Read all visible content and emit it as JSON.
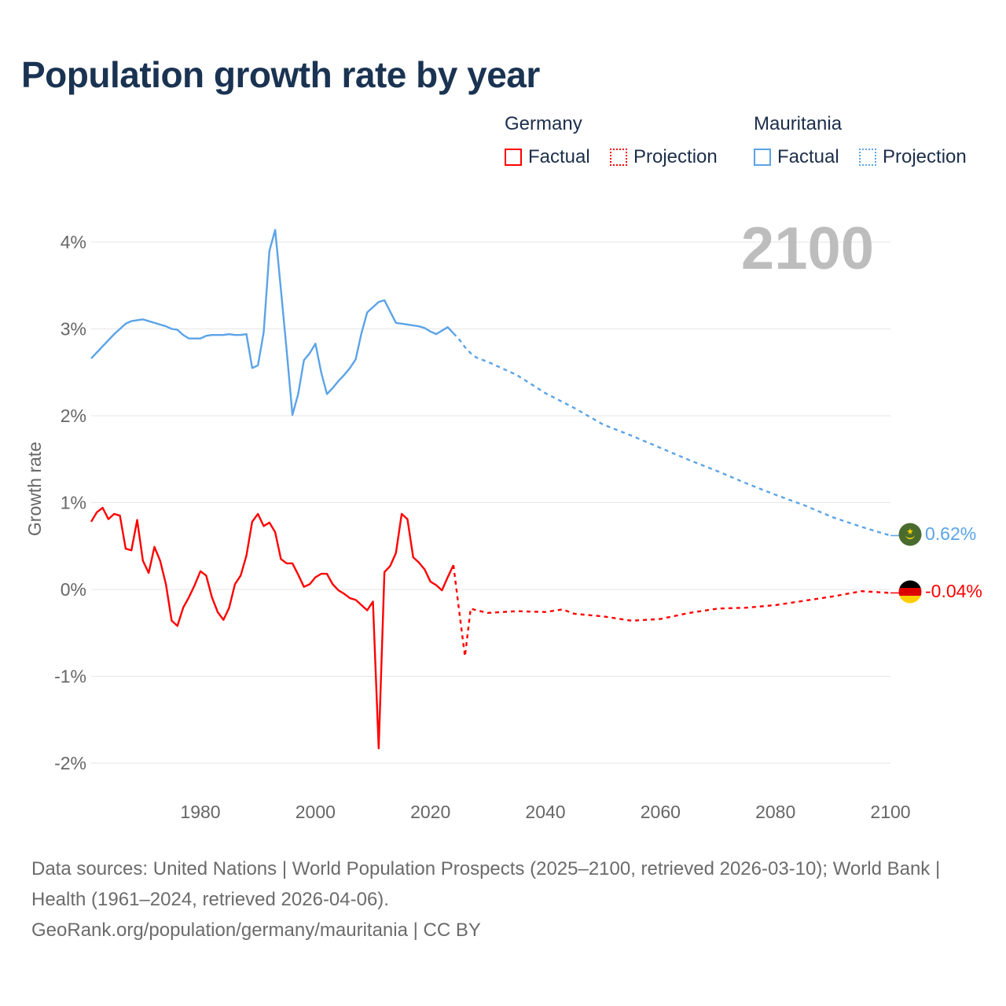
{
  "title": "Population growth rate by year",
  "legend": {
    "groups": [
      {
        "name": "Germany",
        "factual": "Factual",
        "projection": "Projection",
        "color": "#ff0000"
      },
      {
        "name": "Mauritania",
        "factual": "Factual",
        "projection": "Projection",
        "color": "#5ba3e8"
      }
    ]
  },
  "year_display": "2100",
  "end_labels": {
    "mauritania": "0.62%",
    "germany": "-0.04%"
  },
  "footer": {
    "sources": "Data sources: United Nations | World Population Prospects (2025–2100, retrieved 2026-03-10); World Bank | Health (1961–2024, retrieved 2026-04-06).",
    "attribution": "GeoRank.org/population/germany/mauritania | CC BY"
  },
  "chart_data": {
    "type": "line",
    "title": "Population growth rate by year",
    "xlabel": "",
    "ylabel": "Growth rate",
    "xlim": [
      1961,
      2100
    ],
    "ylim": [
      -2.2,
      4.4
    ],
    "xticks": [
      1980,
      2000,
      2020,
      2040,
      2060,
      2080,
      2100
    ],
    "yticks": [
      {
        "v": 4,
        "label": "4%"
      },
      {
        "v": 3,
        "label": "3%"
      },
      {
        "v": 2,
        "label": "2%"
      },
      {
        "v": 1,
        "label": "1%"
      },
      {
        "v": 0,
        "label": "0%"
      },
      {
        "v": -1,
        "label": "-1%"
      },
      {
        "v": -2,
        "label": "-2%"
      }
    ],
    "grid": true,
    "legend_position": "top-right",
    "series": [
      {
        "name": "Mauritania",
        "color": "#5ba3e8",
        "factual": {
          "start_year": 1961,
          "values": [
            2.66,
            2.73,
            2.8,
            2.87,
            2.94,
            3.0,
            3.06,
            3.09,
            3.1,
            3.11,
            3.09,
            3.07,
            3.05,
            3.03,
            3.0,
            2.99,
            2.93,
            2.89,
            2.89,
            2.89,
            2.92,
            2.93,
            2.93,
            2.93,
            2.94,
            2.93,
            2.93,
            2.94,
            2.55,
            2.58,
            2.96,
            3.9,
            4.14,
            3.45,
            2.75,
            2.01,
            2.25,
            2.64,
            2.72,
            2.83,
            2.5,
            2.25,
            2.32,
            2.4,
            2.47,
            2.55,
            2.65,
            2.95,
            3.19,
            3.25,
            3.31,
            3.33,
            3.2,
            3.07,
            3.06,
            3.05,
            3.04,
            3.03,
            3.01,
            2.97,
            2.94,
            2.98,
            3.02,
            2.95
          ]
        },
        "projection": {
          "years": [
            2025,
            2026,
            2027,
            2028,
            2030,
            2035,
            2040,
            2045,
            2050,
            2055,
            2060,
            2065,
            2070,
            2075,
            2080,
            2085,
            2090,
            2095,
            2100
          ],
          "values": [
            2.88,
            2.79,
            2.72,
            2.67,
            2.62,
            2.47,
            2.26,
            2.09,
            1.9,
            1.77,
            1.63,
            1.49,
            1.36,
            1.22,
            1.09,
            0.97,
            0.83,
            0.72,
            0.62
          ]
        }
      },
      {
        "name": "Germany",
        "color": "#ff0000",
        "factual": {
          "start_year": 1961,
          "values": [
            0.78,
            0.89,
            0.94,
            0.81,
            0.87,
            0.85,
            0.47,
            0.45,
            0.8,
            0.33,
            0.19,
            0.49,
            0.33,
            0.06,
            -0.36,
            -0.42,
            -0.21,
            -0.09,
            0.05,
            0.21,
            0.16,
            -0.09,
            -0.26,
            -0.35,
            -0.21,
            0.06,
            0.16,
            0.39,
            0.78,
            0.87,
            0.73,
            0.77,
            0.66,
            0.35,
            0.3,
            0.3,
            0.17,
            0.03,
            0.06,
            0.14,
            0.18,
            0.18,
            0.06,
            -0.01,
            -0.05,
            -0.1,
            -0.12,
            -0.18,
            -0.24,
            -0.14,
            -1.83,
            0.2,
            0.27,
            0.42,
            0.87,
            0.81,
            0.37,
            0.31,
            0.23,
            0.09,
            0.05,
            -0.01,
            0.14,
            0.28
          ]
        },
        "projection": {
          "years": [
            2025,
            2026,
            2027,
            2028,
            2030,
            2035,
            2040,
            2043,
            2045,
            2050,
            2055,
            2060,
            2065,
            2070,
            2075,
            2080,
            2085,
            2090,
            2095,
            2100
          ],
          "values": [
            -0.25,
            -0.77,
            -0.22,
            -0.24,
            -0.27,
            -0.25,
            -0.26,
            -0.23,
            -0.28,
            -0.31,
            -0.36,
            -0.34,
            -0.27,
            -0.22,
            -0.21,
            -0.18,
            -0.13,
            -0.08,
            -0.02,
            -0.04
          ]
        }
      }
    ]
  }
}
